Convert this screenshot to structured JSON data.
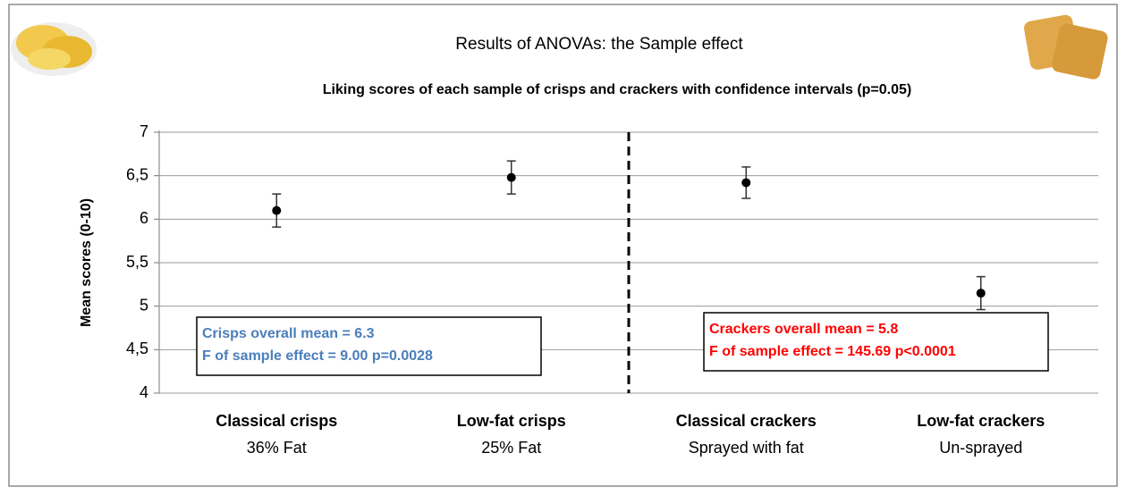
{
  "chart_data": {
    "type": "errorbar",
    "title": "Results of ANOVAs: the Sample effect",
    "subtitle": "Liking scores of each sample of crisps and crackers with confidence intervals (p=0.05)",
    "y_label": "Mean scores (0-10)",
    "categories": [
      "Classical crisps",
      "Low-fat crisps",
      "Classical crackers",
      "Low-fat crackers"
    ],
    "category_notes": [
      "36% Fat",
      "25% Fat",
      "Sprayed with fat",
      "Un-sprayed"
    ],
    "series": [
      {
        "color": "#000000",
        "values": [
          6.1,
          6.48,
          6.42,
          5.15
        ],
        "errors": [
          0.19,
          0.19,
          0.18,
          0.19
        ]
      }
    ],
    "ylim": [
      4,
      7
    ],
    "yticks": [
      4,
      {
        "value": 4.5,
        "label": "4,5"
      },
      5,
      {
        "value": 5.5,
        "label": "5,5"
      },
      6,
      {
        "value": 6.5,
        "label": "6,5"
      },
      7
    ],
    "grid": true,
    "annotations": [
      {
        "lines": [
          "Crisps overall mean = 6.3",
          "F of sample effect = 9.00  p=0.0028"
        ],
        "color": "#4a7ebb"
      },
      {
        "lines": [
          "Crackers overall mean = 5.8",
          "F of sample effect = 145.69  p<0.0001"
        ],
        "color": "#ff0000"
      }
    ]
  }
}
